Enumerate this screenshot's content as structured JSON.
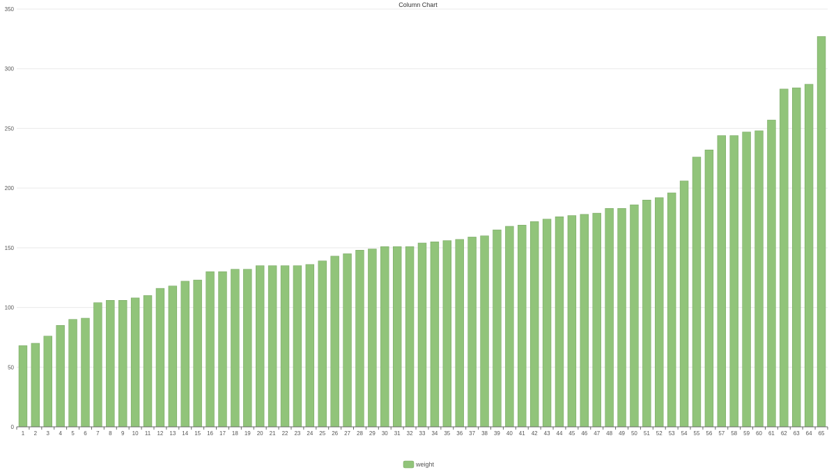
{
  "chart_data": {
    "type": "bar",
    "title": "Column Chart",
    "xlabel": "",
    "ylabel": "",
    "ylim": [
      0,
      350
    ],
    "yticks": [
      0,
      50,
      100,
      150,
      200,
      250,
      300,
      350
    ],
    "grid": true,
    "legend_position": "bottom-center",
    "categories": [
      "1",
      "2",
      "3",
      "4",
      "5",
      "6",
      "7",
      "8",
      "9",
      "10",
      "11",
      "12",
      "13",
      "14",
      "15",
      "16",
      "17",
      "18",
      "19",
      "20",
      "21",
      "22",
      "23",
      "24",
      "25",
      "26",
      "27",
      "28",
      "29",
      "30",
      "31",
      "32",
      "33",
      "34",
      "35",
      "36",
      "37",
      "38",
      "39",
      "40",
      "41",
      "42",
      "43",
      "44",
      "45",
      "46",
      "47",
      "48",
      "49",
      "50",
      "51",
      "52",
      "53",
      "54",
      "55",
      "56",
      "57",
      "58",
      "59",
      "60",
      "61",
      "62",
      "63",
      "64",
      "65"
    ],
    "series": [
      {
        "name": "weight",
        "color": "#91c47a",
        "values": [
          68,
          70,
          76,
          85,
          90,
          91,
          104,
          106,
          106,
          108,
          110,
          116,
          118,
          122,
          123,
          130,
          130,
          132,
          132,
          135,
          135,
          135,
          135,
          136,
          139,
          143,
          145,
          148,
          149,
          151,
          151,
          151,
          154,
          155,
          156,
          157,
          159,
          160,
          165,
          168,
          169,
          172,
          174,
          176,
          177,
          178,
          179,
          183,
          183,
          186,
          190,
          192,
          196,
          206,
          226,
          232,
          244,
          244,
          247,
          248,
          257,
          283,
          284,
          287,
          327
        ]
      }
    ]
  }
}
